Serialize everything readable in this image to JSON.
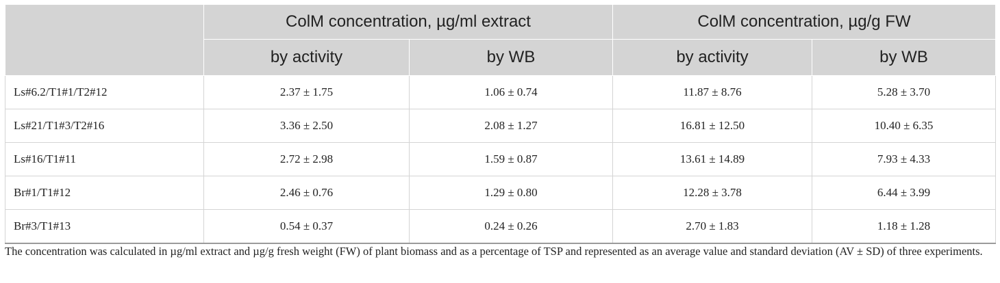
{
  "table": {
    "header_groups": [
      "ColM concentration, µg/ml extract",
      "ColM concentration, µg/g FW"
    ],
    "subheaders": [
      "by activity",
      "by WB",
      "by activity",
      "by WB"
    ],
    "rows": [
      {
        "name": "Ls#6.2/T1#1/T2#12",
        "values": [
          "2.37 ± 1.75",
          "1.06 ± 0.74",
          "11.87 ± 8.76",
          "5.28 ± 3.70"
        ]
      },
      {
        "name": "Ls#21/T1#3/T2#16",
        "values": [
          "3.36 ± 2.50",
          "2.08 ± 1.27",
          "16.81 ± 12.50",
          "10.40 ± 6.35"
        ]
      },
      {
        "name": "Ls#16/T1#11",
        "values": [
          "2.72 ± 2.98",
          "1.59 ± 0.87",
          "13.61 ± 14.89",
          "7.93 ± 4.33"
        ]
      },
      {
        "name": "Br#1/T1#12",
        "values": [
          "2.46 ± 0.76",
          "1.29 ± 0.80",
          "12.28 ± 3.78",
          "6.44 ± 3.99"
        ]
      },
      {
        "name": "Br#3/T1#13",
        "values": [
          "0.54 ± 0.37",
          "0.24 ± 0.26",
          "2.70 ± 1.83",
          "1.18 ± 1.28"
        ]
      }
    ]
  },
  "footnote": "The concentration was calculated in µg/ml extract and µg/g fresh weight (FW) of plant biomass and as a percentage of TSP and represented as an average value and standard deviation (AV ± SD) of three experiments.",
  "colors": {
    "header_bg": "#d4d4d4",
    "grid_line": "#d4d4d4",
    "text": "#222222"
  }
}
